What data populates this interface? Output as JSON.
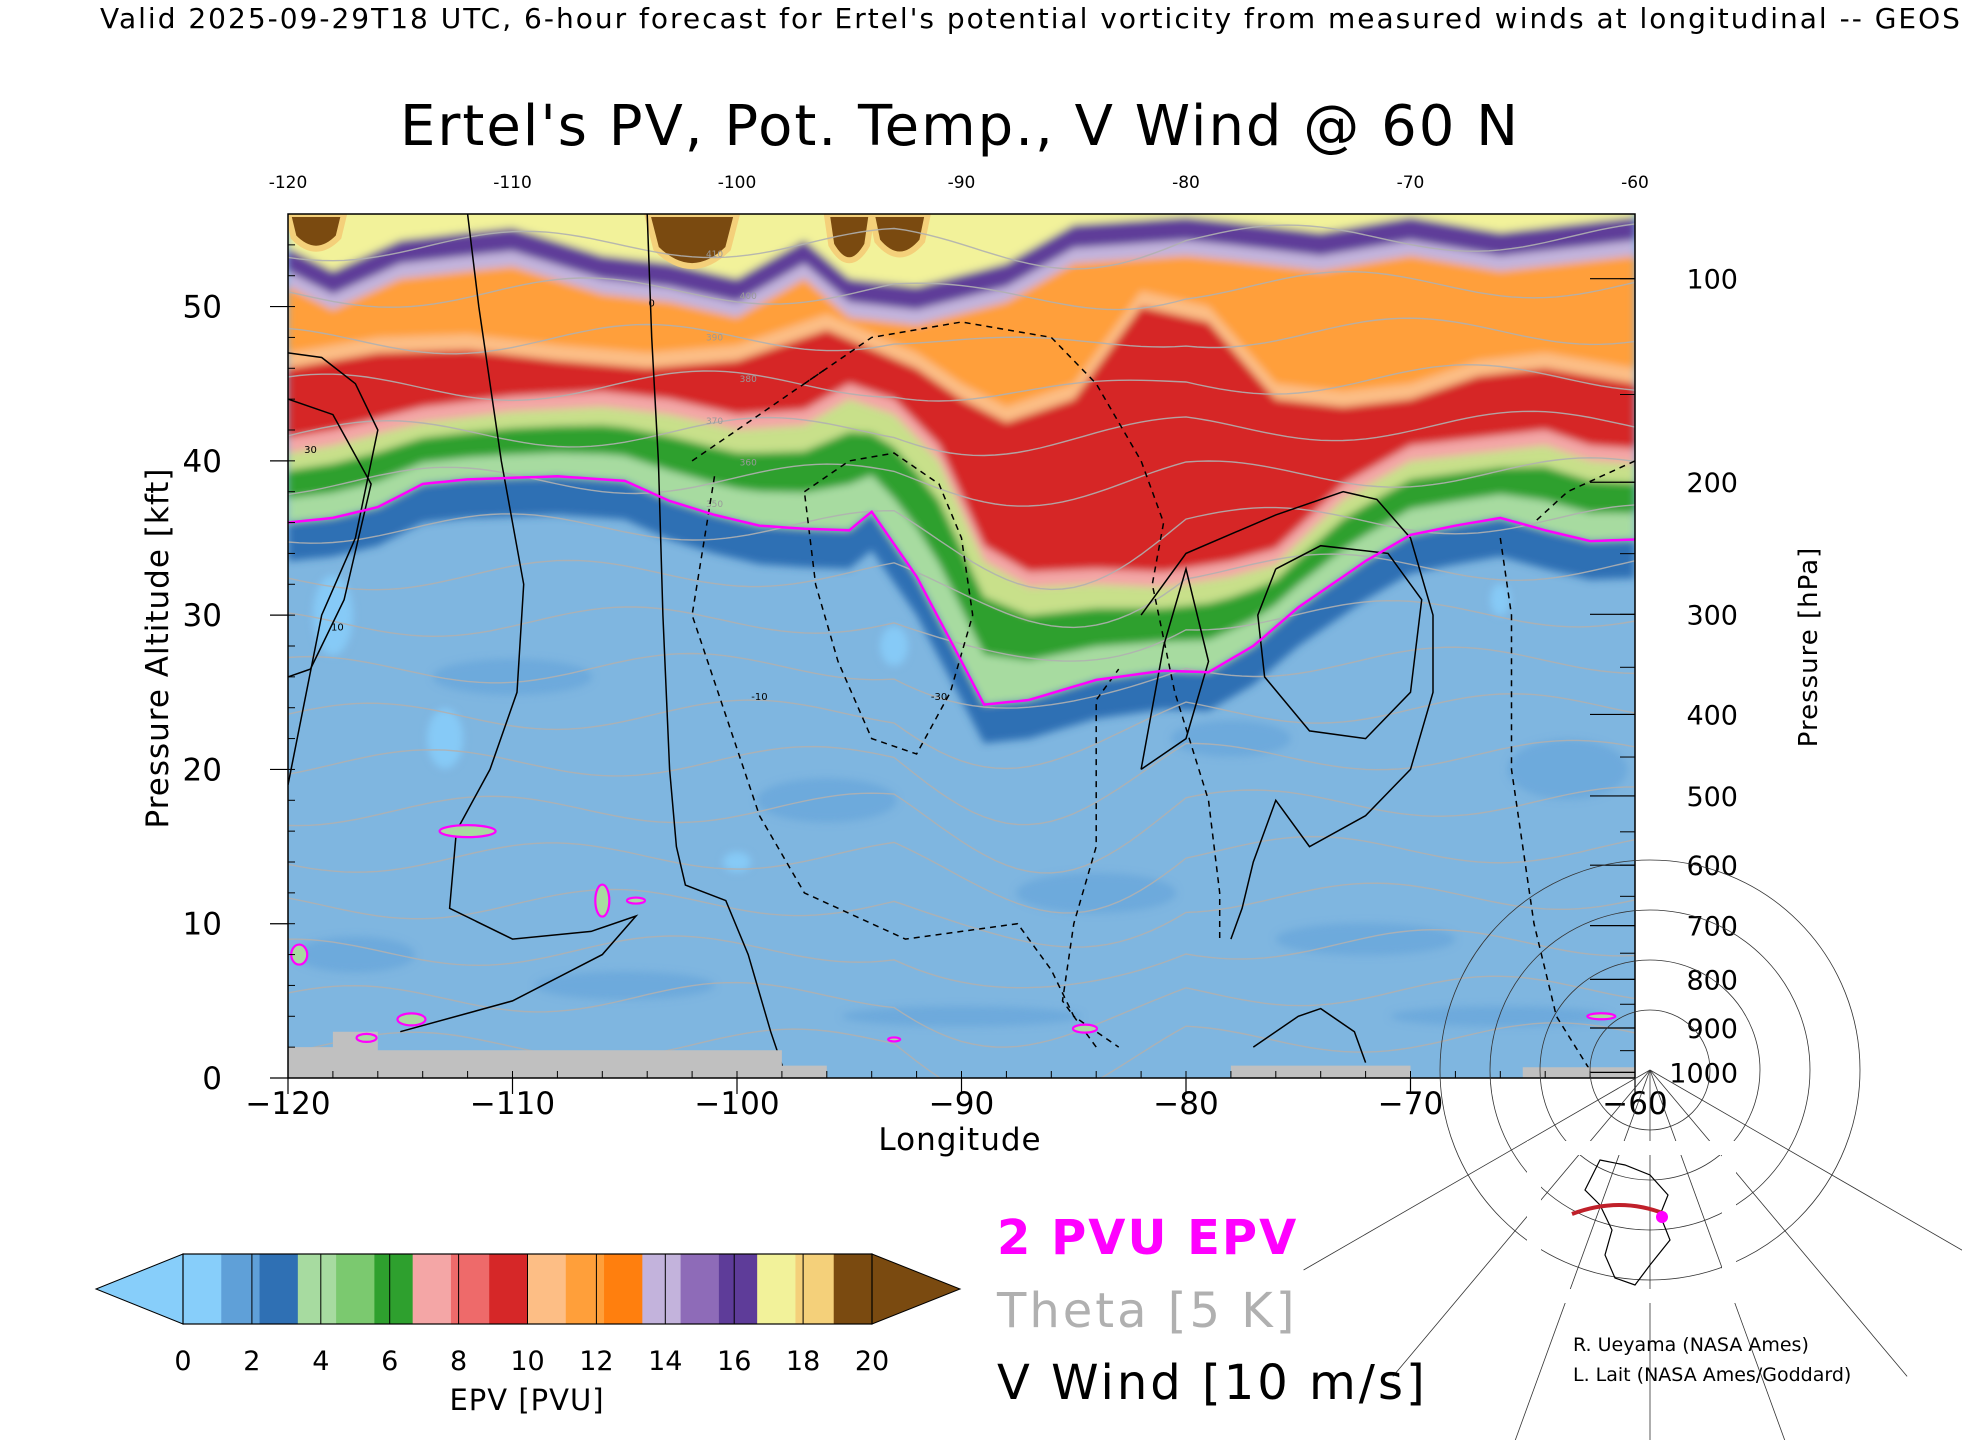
{
  "header": "Valid 2025-09-29T18 UTC, 6-hour forecast for Ertel's potential vorticity from measured winds at longitudinal -- GEOS",
  "colors": {
    "epv_levels": [
      "#87cefa",
      "#5fa0d8",
      "#2f70b4",
      "#a7dba0",
      "#7bc96f",
      "#2ea02e",
      "#f4a6a6",
      "#ee6a6a",
      "#d62728",
      "#fdbe85",
      "#ff9f3a",
      "#ff7f0e",
      "#c3b3dc",
      "#8e6bb8",
      "#5e3c99",
      "#f2f29a",
      "#f4d07a",
      "#7a4a10"
    ],
    "pv2_contour": "#ff00ff",
    "theta": "#b0b0b0",
    "vwind": "#000000",
    "terrain": "#c0c0c0"
  },
  "chart_data": {
    "type": "heatmap",
    "title": "Ertel's PV, Pot. Temp., V Wind @ 60 N",
    "xlabel": "Longitude",
    "ylabel": "Pressure Altitude [kft]",
    "y2label": "Pressure [hPa]",
    "xlim": [
      -120,
      -60
    ],
    "ylim": [
      0,
      56
    ],
    "x_ticks": [
      -120,
      -110,
      -100,
      -90,
      -80,
      -70,
      -60
    ],
    "x_tick_labels": [
      "−120",
      "−110",
      "−100",
      "−90",
      "−80",
      "−70",
      "−60"
    ],
    "top_tick_labels": [
      "-120",
      "-110",
      "-100",
      "-90",
      "-80",
      "-70",
      "-60"
    ],
    "y_ticks": [
      0,
      10,
      20,
      30,
      40,
      50
    ],
    "pressure_ticks": [
      1000,
      900,
      800,
      700,
      600,
      500,
      400,
      300,
      200,
      100
    ],
    "colorbar": {
      "label": "EPV [PVU]",
      "ticks": [
        0,
        2,
        4,
        6,
        8,
        10,
        12,
        14,
        16,
        18,
        20
      ]
    },
    "tropopause_2pvu_kft": [
      [
        -120,
        36
      ],
      [
        -118,
        36.3
      ],
      [
        -116,
        37
      ],
      [
        -114,
        38.5
      ],
      [
        -112,
        38.8
      ],
      [
        -108,
        39
      ],
      [
        -105,
        38.7
      ],
      [
        -103,
        37.4
      ],
      [
        -101,
        36.5
      ],
      [
        -99,
        35.8
      ],
      [
        -97,
        35.6
      ],
      [
        -95,
        35.5
      ],
      [
        -94,
        36.7
      ],
      [
        -92,
        32.5
      ],
      [
        -90,
        27
      ],
      [
        -89,
        24.2
      ],
      [
        -87,
        24.5
      ],
      [
        -84,
        25.8
      ],
      [
        -81,
        26.4
      ],
      [
        -79,
        26.3
      ],
      [
        -77,
        28
      ],
      [
        -75,
        30.5
      ],
      [
        -72,
        33.5
      ],
      [
        -70,
        35.2
      ],
      [
        -68,
        35.8
      ],
      [
        -66,
        36.3
      ],
      [
        -64,
        35.5
      ],
      [
        -62,
        34.8
      ],
      [
        -60,
        34.9
      ]
    ],
    "tropopause_top_kft": [
      [
        -120,
        40.5
      ],
      [
        -118,
        41
      ],
      [
        -114,
        42.5
      ],
      [
        -110,
        43.2
      ],
      [
        -106,
        43.5
      ],
      [
        -103,
        43
      ],
      [
        -100,
        42
      ],
      [
        -97,
        42.3
      ],
      [
        -95,
        44
      ],
      [
        -93,
        43
      ],
      [
        -91,
        40
      ],
      [
        -89,
        33.5
      ],
      [
        -87,
        31.8
      ],
      [
        -84,
        32
      ],
      [
        -81,
        31.8
      ],
      [
        -78,
        32.5
      ],
      [
        -76,
        33.3
      ],
      [
        -73,
        37.5
      ],
      [
        -70,
        40
      ],
      [
        -67,
        40.5
      ],
      [
        -64,
        41
      ],
      [
        -62,
        40
      ],
      [
        -60,
        39.8
      ]
    ],
    "stratosphere_orange_kft": [
      [
        -120,
        46
      ],
      [
        -116,
        47
      ],
      [
        -112,
        47.2
      ],
      [
        -108,
        46.5
      ],
      [
        -104,
        46
      ],
      [
        -100,
        46.5
      ],
      [
        -96,
        48.5
      ],
      [
        -92,
        46
      ],
      [
        -90,
        44
      ],
      [
        -88,
        42.5
      ],
      [
        -85,
        44
      ],
      [
        -82,
        50
      ],
      [
        -79,
        49
      ],
      [
        -76,
        44
      ],
      [
        -73,
        43.5
      ],
      [
        -70,
        44
      ],
      [
        -67,
        45.5
      ],
      [
        -64,
        46
      ],
      [
        -60,
        45
      ]
    ],
    "stratosphere_purple_kft": [
      [
        -120,
        52.5
      ],
      [
        -118,
        51
      ],
      [
        -115,
        53
      ],
      [
        -112,
        53.5
      ],
      [
        -110,
        53.8
      ],
      [
        -106,
        52
      ],
      [
        -103,
        51.5
      ],
      [
        -100,
        50.5
      ],
      [
        -97,
        53
      ],
      [
        -95,
        50.5
      ],
      [
        -92,
        50
      ],
      [
        -88,
        51.5
      ],
      [
        -85,
        54
      ],
      [
        -80,
        54.5
      ],
      [
        -78,
        54.2
      ],
      [
        -74,
        53.5
      ],
      [
        -70,
        54.5
      ],
      [
        -66,
        53.5
      ],
      [
        -63,
        54
      ],
      [
        -60,
        54.5
      ]
    ],
    "high_pv_cells": [
      {
        "lon_range": [
          -120,
          -117.5
        ],
        "kft_range": [
          53,
          56
        ]
      },
      {
        "lon_range": [
          -104,
          -100
        ],
        "kft_range": [
          51.5,
          56
        ]
      },
      {
        "lon_range": [
          -96,
          -94
        ],
        "kft_range": [
          52,
          56
        ]
      },
      {
        "lon_range": [
          -94,
          -91.5
        ],
        "kft_range": [
          52.5,
          56
        ]
      }
    ],
    "theta_contours_k": [
      300,
      310,
      320,
      330,
      340,
      350,
      360,
      370,
      380,
      390,
      400,
      410,
      420,
      430,
      440,
      450,
      460,
      470
    ],
    "theta_labels": [
      "350",
      "360",
      "370",
      "380",
      "390",
      "400",
      "410"
    ],
    "vwind_contour_labels": [
      "0",
      "10",
      "30",
      "-10",
      "-30"
    ]
  },
  "credits": [
    "R. Ueyama (NASA Ames)",
    "L. Lait (NASA Ames/Goddard)"
  ],
  "legend": {
    "pv2": "2 PVU EPV",
    "theta": "Theta [5 K]",
    "vwind": "V Wind [10 m/s]"
  }
}
